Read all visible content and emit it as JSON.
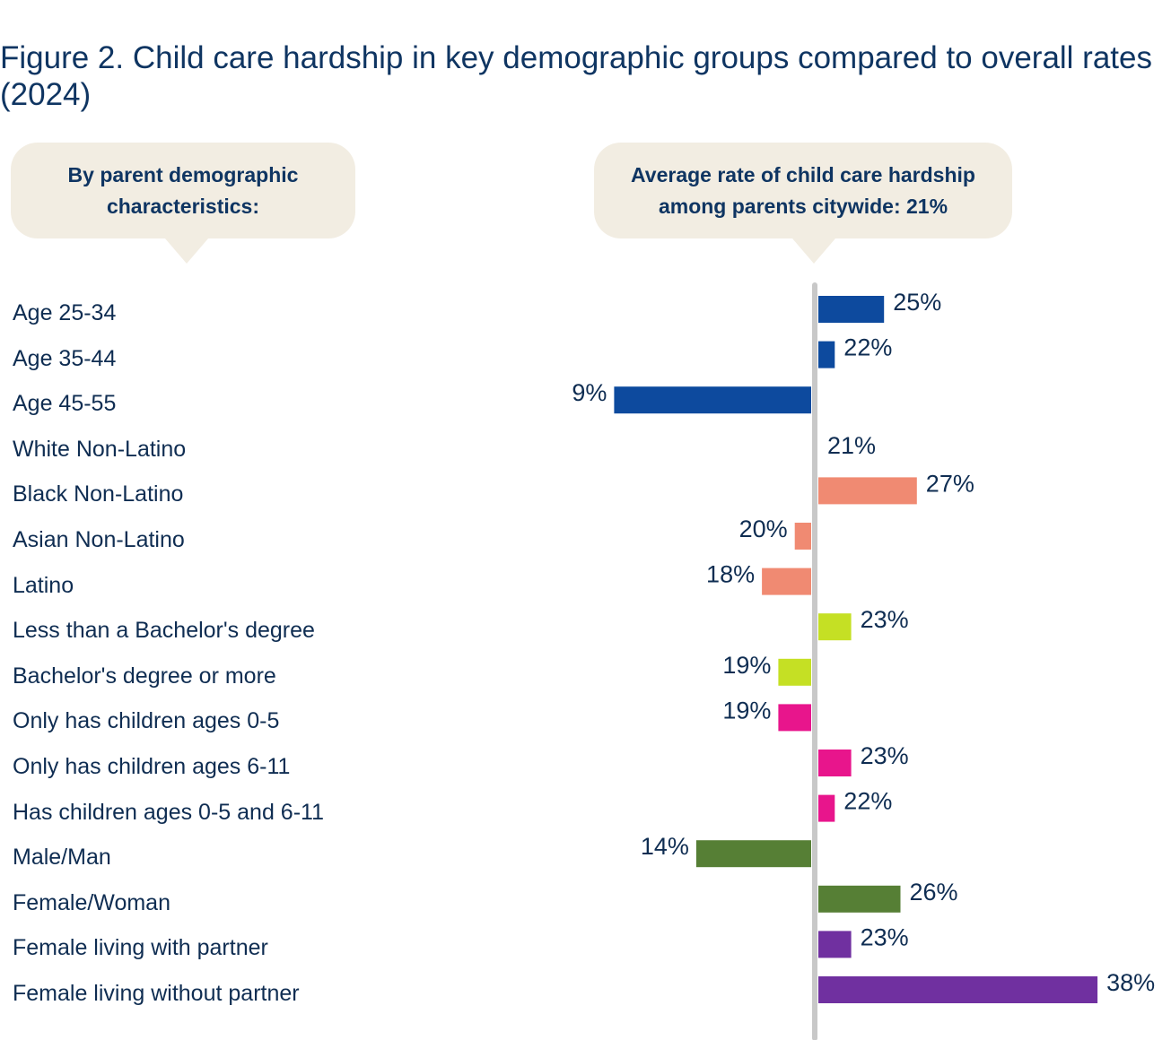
{
  "title": "Figure 2. Child care hardship in key demographic groups compared to overall rates (2024)",
  "callouts": {
    "left": "By parent demographic characteristics:",
    "right": "Average rate of child care hardship among parents citywide: 21%"
  },
  "chart_data": {
    "type": "bar",
    "orientation": "horizontal",
    "baseline": 21,
    "categories": [
      "Age 25-34",
      "Age 35-44",
      "Age 45-55",
      "White Non-Latino",
      "Black Non-Latino",
      "Asian Non-Latino",
      "Latino",
      "Less than a Bachelor's degree",
      "Bachelor's degree or more",
      "Only has children ages 0-5",
      "Only has children ages 6-11",
      "Has children ages 0-5 and 6-11",
      "Male/Man",
      "Female/Woman",
      "Female living with partner",
      "Female living without partner"
    ],
    "values": [
      25,
      22,
      9,
      21,
      27,
      20,
      18,
      23,
      19,
      19,
      23,
      22,
      14,
      26,
      23,
      38
    ],
    "value_labels": [
      "25%",
      "22%",
      "9%",
      "21%",
      "27%",
      "20%",
      "18%",
      "23%",
      "19%",
      "19%",
      "23%",
      "22%",
      "14%",
      "26%",
      "23%",
      "38%"
    ],
    "colors": [
      "#0d4a9e",
      "#0d4a9e",
      "#0d4a9e",
      "#f08a72",
      "#f08a72",
      "#f08a72",
      "#f08a72",
      "#c5e024",
      "#c5e024",
      "#e8158c",
      "#e8158c",
      "#e8158c",
      "#567f35",
      "#567f35",
      "#7030a0",
      "#7030a0"
    ],
    "baseline_color": "#c8c8c8",
    "gridlines": false,
    "legend": "none"
  }
}
